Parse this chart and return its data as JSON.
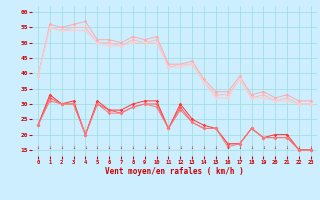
{
  "x": [
    0,
    1,
    2,
    3,
    4,
    5,
    6,
    7,
    8,
    9,
    10,
    11,
    12,
    13,
    14,
    15,
    16,
    17,
    18,
    19,
    20,
    21,
    22,
    23
  ],
  "series": [
    {
      "color": "#ffaaaa",
      "y": [
        39,
        56,
        55,
        56,
        57,
        51,
        51,
        50,
        52,
        51,
        52,
        43,
        43,
        44,
        38,
        34,
        34,
        39,
        33,
        34,
        32,
        33,
        31,
        31
      ]
    },
    {
      "color": "#ffbbbb",
      "y": [
        39,
        55,
        54,
        55,
        55,
        50,
        50,
        49,
        51,
        50,
        51,
        42,
        43,
        43,
        37,
        33,
        33,
        38,
        32,
        33,
        31,
        32,
        30,
        30
      ]
    },
    {
      "color": "#ffcccc",
      "y": [
        39,
        55,
        54,
        54,
        54,
        50,
        49,
        49,
        50,
        50,
        50,
        42,
        42,
        43,
        37,
        32,
        32,
        38,
        32,
        32,
        31,
        31,
        30,
        30
      ]
    },
    {
      "color": "#ff3333",
      "y": [
        23,
        33,
        30,
        31,
        20,
        31,
        28,
        28,
        30,
        31,
        31,
        22,
        30,
        25,
        23,
        22,
        17,
        17,
        22,
        19,
        20,
        20,
        15,
        15
      ]
    },
    {
      "color": "#ff5555",
      "y": [
        23,
        32,
        30,
        30,
        20,
        30,
        28,
        27,
        29,
        30,
        30,
        22,
        29,
        24,
        22,
        22,
        17,
        17,
        22,
        19,
        19,
        19,
        15,
        15
      ]
    },
    {
      "color": "#ff7777",
      "y": [
        23,
        31,
        30,
        30,
        20,
        30,
        27,
        27,
        29,
        30,
        29,
        22,
        28,
        24,
        22,
        22,
        16,
        17,
        22,
        19,
        19,
        19,
        15,
        15
      ]
    }
  ],
  "xlabel": "Vent moyen/en rafales ( km/h )",
  "ylim": [
    13,
    62
  ],
  "xlim": [
    -0.5,
    23.5
  ],
  "yticks": [
    15,
    20,
    25,
    30,
    35,
    40,
    45,
    50,
    55,
    60
  ],
  "xticks": [
    0,
    1,
    2,
    3,
    4,
    5,
    6,
    7,
    8,
    9,
    10,
    11,
    12,
    13,
    14,
    15,
    16,
    17,
    18,
    19,
    20,
    21,
    22,
    23
  ],
  "bg_color": "#cceeff",
  "grid_color": "#99dddd",
  "marker": "D",
  "markersize": 1.8,
  "linewidth": 0.7,
  "tick_fontsize": 4.0,
  "xlabel_fontsize": 5.5,
  "ytick_fontsize": 4.5
}
